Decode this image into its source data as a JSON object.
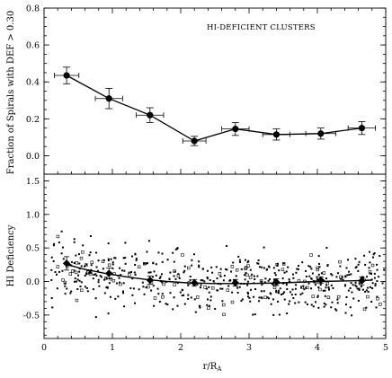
{
  "chart_data": [
    {
      "type": "line",
      "annotation": "HI-DEFICIENT CLUSTERS",
      "ylabel": "Fraction of Spirals with DEF > 0.30",
      "xlim": [
        0,
        5
      ],
      "ylim": [
        -0.1,
        0.8
      ],
      "yticks": [
        "0.0",
        "0.2",
        "0.4",
        "0.6",
        "0.8"
      ],
      "series": [
        {
          "x": [
            0.33,
            0.95,
            1.55,
            2.2,
            2.8,
            3.4,
            4.05,
            4.65
          ],
          "y": [
            0.435,
            0.31,
            0.22,
            0.08,
            0.145,
            0.115,
            0.12,
            0.15
          ],
          "xerr": [
            0.18,
            0.2,
            0.2,
            0.17,
            0.2,
            0.2,
            0.22,
            0.2
          ],
          "yerr": [
            0.045,
            0.055,
            0.04,
            0.025,
            0.035,
            0.03,
            0.03,
            0.035
          ]
        }
      ]
    },
    {
      "type": "scatter",
      "xlabel": "r/R",
      "xlabel_subscript": "A",
      "ylabel": "HI Deficiency",
      "xlim": [
        0,
        5
      ],
      "ylim": [
        -0.85,
        1.6
      ],
      "xticks": [
        "0",
        "1",
        "2",
        "3",
        "4",
        "5"
      ],
      "yticks": [
        "-0.5",
        "0.0",
        "0.5",
        "1.0",
        "1.5"
      ],
      "binned_means": {
        "x": [
          0.33,
          0.95,
          1.55,
          2.2,
          2.8,
          3.4,
          4.05,
          4.65
        ],
        "y": [
          0.27,
          0.12,
          0.02,
          -0.02,
          -0.02,
          -0.01,
          0.02,
          0.01
        ],
        "yerr": [
          0.1,
          0.08,
          0.06,
          0.05,
          0.05,
          0.05,
          0.05,
          0.06
        ]
      },
      "fit_curve": {
        "x": [
          0.3,
          0.6,
          0.9,
          1.2,
          1.5,
          1.8,
          2.1,
          2.5,
          3.0,
          3.5,
          4.0,
          4.5,
          4.8
        ],
        "y": [
          0.26,
          0.18,
          0.12,
          0.07,
          0.03,
          0.0,
          -0.02,
          -0.03,
          -0.03,
          -0.02,
          0.0,
          0.01,
          0.02
        ]
      },
      "scatter_points": 620
    }
  ]
}
